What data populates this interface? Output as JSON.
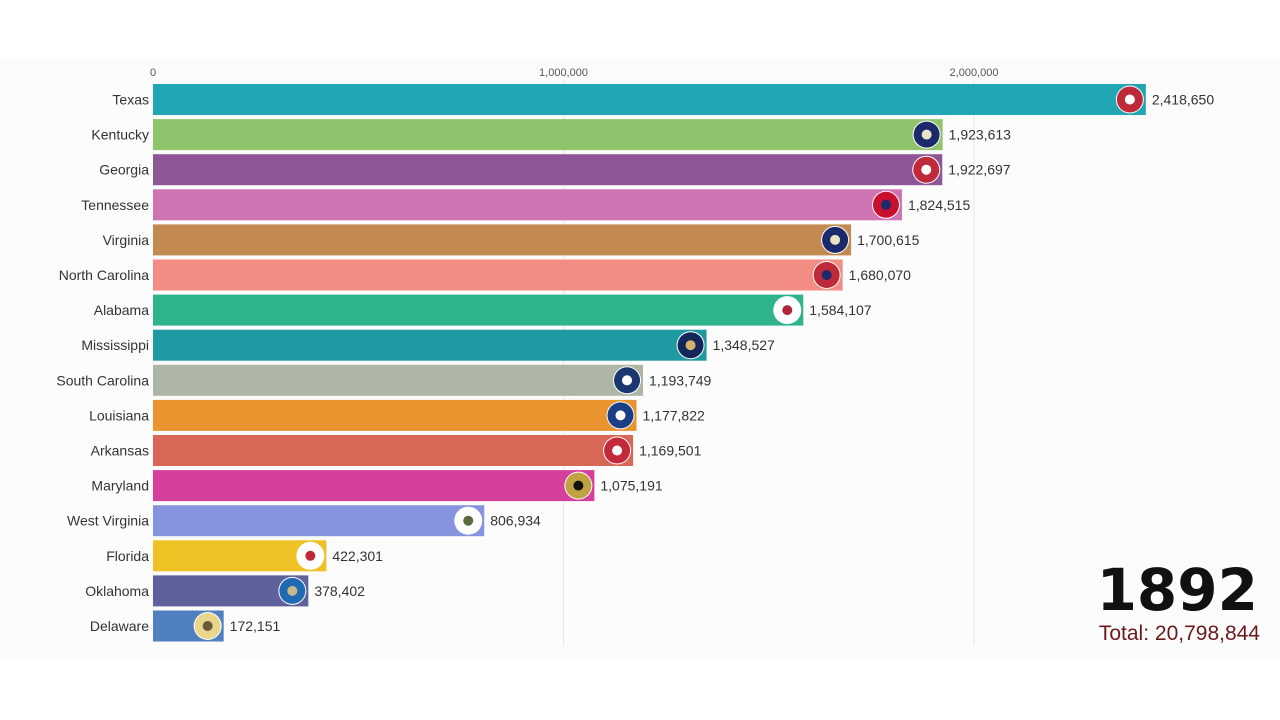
{
  "chart_data": {
    "type": "bar",
    "orientation": "horizontal",
    "title": "",
    "xlabel": "",
    "ylabel": "",
    "xlim": [
      0,
      2450000
    ],
    "x_ticks": [
      0,
      1000000,
      2000000
    ],
    "x_tick_labels": [
      "0",
      "1,000,000",
      "2,000,000"
    ],
    "grid": true,
    "legend": "none",
    "categories": [
      "Texas",
      "Kentucky",
      "Georgia",
      "Tennessee",
      "Virginia",
      "North Carolina",
      "Alabama",
      "Mississippi",
      "South Carolina",
      "Louisiana",
      "Arkansas",
      "Maryland",
      "West Virginia",
      "Florida",
      "Oklahoma",
      "Delaware"
    ],
    "values": [
      2418650,
      1923613,
      1922697,
      1824515,
      1700615,
      1680070,
      1584107,
      1348527,
      1193749,
      1177822,
      1169501,
      1075191,
      806934,
      422301,
      378402,
      172151
    ],
    "value_labels": [
      "2,418,650",
      "1,923,613",
      "1,922,697",
      "1,824,515",
      "1,700,615",
      "1,680,070",
      "1,584,107",
      "1,348,527",
      "1,193,749",
      "1,177,822",
      "1,169,501",
      "1,075,191",
      "806,934",
      "422,301",
      "378,402",
      "172,151"
    ],
    "colors": [
      "#21a6b3",
      "#8fc46c",
      "#8e5597",
      "#cf73b2",
      "#c28a51",
      "#f38d83",
      "#2eb38a",
      "#1f9aa3",
      "#adb5a5",
      "#e9942f",
      "#d96756",
      "#d63e9c",
      "#8693de",
      "#eec124",
      "#5f619d",
      "#5080bf"
    ],
    "flag_icons": [
      "texas-flag-icon",
      "kentucky-flag-icon",
      "georgia-flag-icon",
      "tennessee-flag-icon",
      "virginia-flag-icon",
      "north-carolina-flag-icon",
      "alabama-flag-icon",
      "mississippi-flag-icon",
      "south-carolina-flag-icon",
      "louisiana-flag-icon",
      "arkansas-flag-icon",
      "maryland-flag-icon",
      "west-virginia-flag-icon",
      "florida-flag-icon",
      "oklahoma-flag-icon",
      "delaware-flag-icon"
    ],
    "annotations": {
      "year": "1892",
      "total": "Total: 20,798,844"
    }
  }
}
